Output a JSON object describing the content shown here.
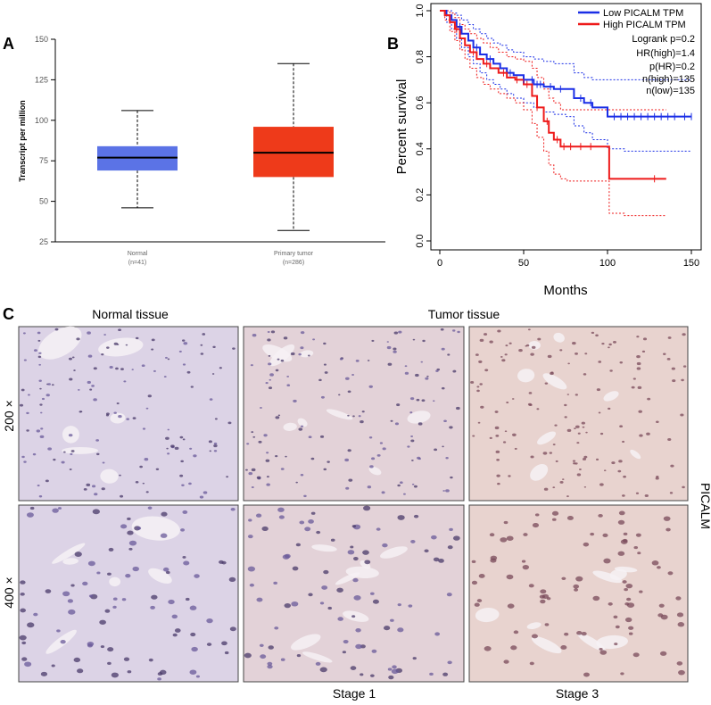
{
  "panels": {
    "a": "A",
    "b": "B",
    "c": "C"
  },
  "colors": {
    "normal_box": "#5b73e6",
    "tumor_box": "#ee3a1a",
    "low_curve": "#1a2ee6",
    "high_curve": "#ee1a1a",
    "tissue_base": "#dcd3e6",
    "tissue_tumor": "#e3d2d8",
    "tissue_stage3": "#e8d3cf",
    "nucleus": "#6a5a9a",
    "nucleus_dark": "#4a3a6a"
  },
  "chart_data": [
    {
      "type": "box",
      "panel": "A",
      "ylabel": "Transcript per million",
      "yticks": [
        25,
        50,
        75,
        100,
        125,
        150
      ],
      "ylim": [
        25,
        150
      ],
      "categories": [
        {
          "name": "Normal",
          "n": "(n=41)",
          "whisker_low": 46,
          "q1": 69,
          "median": 77,
          "q3": 84,
          "whisker_high": 106
        },
        {
          "name": "Primary tumor",
          "n": "(n=286)",
          "whisker_low": 32,
          "q1": 65,
          "median": 80,
          "q3": 96,
          "whisker_high": 135
        }
      ]
    },
    {
      "type": "line",
      "panel": "B",
      "xlabel": "Months",
      "ylabel": "Percent survival",
      "xlim": [
        0,
        150
      ],
      "ylim": [
        0,
        1
      ],
      "xticks": [
        0,
        50,
        100,
        150
      ],
      "yticks": [
        0.0,
        0.2,
        0.4,
        0.6,
        0.8,
        1.0
      ],
      "ytick_labels": [
        "0.0",
        "0.2",
        "0.4",
        "0.6",
        "0.8",
        "1.0"
      ],
      "stats": [
        "Logrank p=0.2",
        "HR(high)=1.4",
        "p(HR)=0.2",
        "n(high)=135",
        "n(low)=135"
      ],
      "series": [
        {
          "name": "Low PICALM TPM",
          "x": [
            0,
            4,
            7,
            10,
            13,
            17,
            20,
            24,
            28,
            32,
            36,
            40,
            44,
            50,
            56,
            62,
            68,
            75,
            80,
            86,
            91,
            100,
            110,
            130,
            150
          ],
          "y": [
            1.0,
            0.98,
            0.96,
            0.93,
            0.9,
            0.87,
            0.84,
            0.81,
            0.79,
            0.77,
            0.75,
            0.73,
            0.72,
            0.7,
            0.68,
            0.67,
            0.66,
            0.66,
            0.62,
            0.6,
            0.58,
            0.54,
            0.54,
            0.54,
            0.54
          ],
          "upper": [
            1.0,
            1.0,
            0.99,
            0.98,
            0.96,
            0.94,
            0.92,
            0.9,
            0.88,
            0.86,
            0.85,
            0.83,
            0.82,
            0.8,
            0.79,
            0.78,
            0.77,
            0.77,
            0.73,
            0.71,
            0.7,
            0.7,
            0.7,
            0.7,
            0.7
          ],
          "lower": [
            1.0,
            0.95,
            0.92,
            0.88,
            0.84,
            0.8,
            0.77,
            0.73,
            0.7,
            0.68,
            0.66,
            0.64,
            0.62,
            0.6,
            0.58,
            0.56,
            0.55,
            0.54,
            0.5,
            0.47,
            0.44,
            0.4,
            0.39,
            0.39,
            0.39
          ],
          "censor_x": [
            12,
            22,
            30,
            42,
            50,
            55,
            58,
            60,
            66,
            72,
            84,
            90,
            104,
            108,
            112,
            116,
            120,
            124,
            128,
            132,
            136,
            140,
            146,
            150
          ]
        },
        {
          "name": "High PICALM TPM",
          "x": [
            0,
            3,
            6,
            9,
            12,
            15,
            18,
            22,
            26,
            30,
            35,
            40,
            45,
            50,
            55,
            58,
            62,
            65,
            68,
            72,
            76,
            101,
            110,
            135
          ],
          "y": [
            1.0,
            0.98,
            0.95,
            0.92,
            0.88,
            0.85,
            0.82,
            0.79,
            0.77,
            0.75,
            0.73,
            0.71,
            0.7,
            0.68,
            0.63,
            0.58,
            0.52,
            0.47,
            0.44,
            0.41,
            0.41,
            0.27,
            0.27,
            0.27
          ],
          "upper": [
            1.0,
            1.0,
            0.99,
            0.97,
            0.94,
            0.92,
            0.9,
            0.88,
            0.86,
            0.84,
            0.82,
            0.8,
            0.79,
            0.78,
            0.75,
            0.71,
            0.66,
            0.62,
            0.6,
            0.57,
            0.57,
            0.57,
            0.57,
            0.57
          ],
          "lower": [
            1.0,
            0.96,
            0.91,
            0.87,
            0.83,
            0.79,
            0.75,
            0.71,
            0.68,
            0.66,
            0.64,
            0.62,
            0.6,
            0.57,
            0.51,
            0.45,
            0.39,
            0.33,
            0.29,
            0.27,
            0.26,
            0.12,
            0.11,
            0.11
          ],
          "censor_x": [
            10,
            20,
            28,
            38,
            46,
            52,
            58,
            64,
            70,
            74,
            78,
            84,
            90,
            128
          ]
        }
      ]
    }
  ],
  "panel_c": {
    "normal_header": "Normal tissue",
    "tumor_header": "Tumor tissue",
    "row_labels": [
      "200 ×",
      "400 ×"
    ],
    "stage_labels": [
      "Stage 1",
      "Stage 3"
    ],
    "side_label": "PICALM"
  }
}
